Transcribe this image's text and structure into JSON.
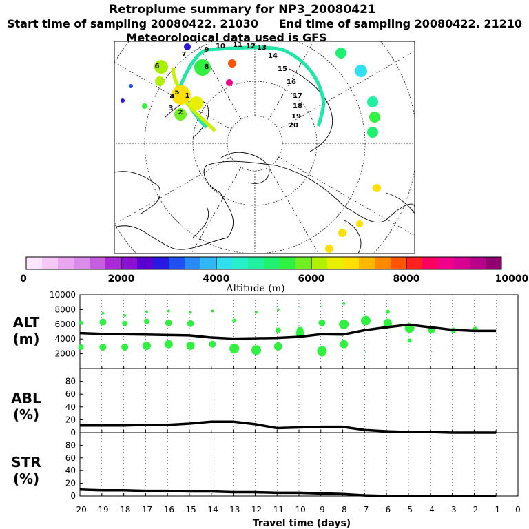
{
  "header": {
    "title": "Retroplume summary for NP3_20080421",
    "start": "Start time of sampling 20080422. 21030",
    "end": "End time of sampling 20080422. 21210",
    "met": "Meteorological data used is GFS"
  },
  "map": {
    "day_labels": [
      "1",
      "2",
      "3",
      "4",
      "5",
      "6",
      "7",
      "8",
      "9",
      "10",
      "11",
      "12",
      "13",
      "14",
      "15",
      "16",
      "17",
      "18",
      "19",
      "20"
    ],
    "colors": {
      "trajectory": "#22e5a8",
      "line_early": "#c8f000",
      "coast": "#000000"
    }
  },
  "colorbar": {
    "title": "Altitude (m)",
    "ticks": [
      "0",
      "2000",
      "4000",
      "6000",
      "8000",
      "10000"
    ],
    "colors": [
      "#ffe6ff",
      "#f5c8f5",
      "#eaa6f0",
      "#d98ce8",
      "#c65ee0",
      "#a82ad8",
      "#8a10d2",
      "#5a00d0",
      "#2a18e0",
      "#2050f0",
      "#2a8af5",
      "#30b8f5",
      "#30e0f0",
      "#28f0c8",
      "#20f0a0",
      "#20f070",
      "#30f040",
      "#70f020",
      "#b0f000",
      "#e8f000",
      "#ffe000",
      "#ffb800",
      "#ff8a00",
      "#ff5500",
      "#ff2020",
      "#ff0060",
      "#f0008a",
      "#d80090",
      "#b80088",
      "#900070"
    ]
  },
  "chart_data": [
    {
      "type": "line",
      "title": "",
      "ylabel": "ALT\n(m)",
      "ylabel_lines": [
        "ALT",
        "(m)"
      ],
      "xlabel": "Travel time (days)",
      "x": [
        -20,
        -19,
        -18,
        -17,
        -16,
        -15,
        -14,
        -13,
        -12,
        -11,
        -10,
        -9,
        -8,
        -7,
        -6,
        -5,
        -4,
        -3,
        -2,
        -1
      ],
      "series": [
        {
          "name": "mean altitude",
          "values": [
            4800,
            4700,
            4650,
            4600,
            4550,
            4500,
            4200,
            4050,
            4100,
            4150,
            4300,
            4650,
            4600,
            5200,
            5600,
            5950,
            5600,
            5250,
            5100,
            5100
          ]
        }
      ],
      "xlim": [
        -20,
        0
      ],
      "ylim": [
        0,
        10000
      ],
      "yticks": [
        "2000",
        "4000",
        "6000",
        "8000",
        "10000"
      ]
    },
    {
      "type": "line",
      "ylabel": "ABL\n(%)",
      "ylabel_lines": [
        "ABL",
        "(%)"
      ],
      "x": [
        -20,
        -19,
        -18,
        -17,
        -16,
        -15,
        -14,
        -13,
        -12,
        -11,
        -10,
        -9,
        -8,
        -7,
        -6,
        -5,
        -4,
        -3,
        -2,
        -1
      ],
      "series": [
        {
          "name": "ABL fraction",
          "values": [
            11,
            11,
            11,
            12,
            12,
            14,
            17,
            17,
            13,
            7,
            8,
            9,
            9,
            4,
            2,
            1,
            1,
            0,
            0,
            0
          ]
        }
      ],
      "xlim": [
        -20,
        0
      ],
      "ylim": [
        0,
        100
      ],
      "yticks": [
        "0",
        "20",
        "40",
        "60",
        "80"
      ]
    },
    {
      "type": "line",
      "ylabel": "STR\n(%)",
      "ylabel_lines": [
        "STR",
        "(%)"
      ],
      "x": [
        -20,
        -19,
        -18,
        -17,
        -16,
        -15,
        -14,
        -13,
        -12,
        -11,
        -10,
        -9,
        -8,
        -7,
        -6,
        -5,
        -4,
        -3,
        -2,
        -1
      ],
      "series": [
        {
          "name": "stratospheric fraction",
          "values": [
            10,
            9,
            9,
            8,
            8,
            7,
            7,
            6,
            6,
            5,
            5,
            4,
            3,
            1,
            0,
            0,
            0,
            0,
            0,
            0
          ]
        }
      ],
      "xlim": [
        -20,
        0
      ],
      "ylim": [
        0,
        100
      ],
      "yticks": [
        "0",
        "20",
        "40",
        "60",
        "80"
      ],
      "xticks": [
        "-20",
        "-19",
        "-18",
        "-17",
        "-16",
        "-15",
        "-14",
        "-13",
        "-12",
        "-11",
        "-10",
        "-9",
        "-8",
        "-7",
        "-6",
        "-5",
        "-4",
        "-3",
        "-2",
        "-1",
        "0"
      ]
    }
  ]
}
